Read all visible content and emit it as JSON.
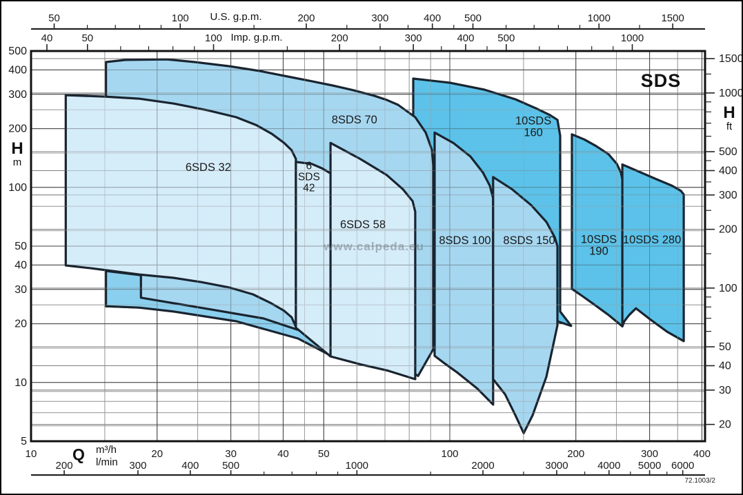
{
  "title": "SDS",
  "watermark": "www.calpeda.eu",
  "ref": "72.1003/2",
  "axes": {
    "top_us": {
      "label": "U.S. g.p.m.",
      "majors": [
        50,
        100,
        200,
        300,
        400,
        500,
        1000,
        1500
      ],
      "minors": [
        60,
        70,
        80,
        90,
        150,
        250,
        350,
        450,
        600,
        700,
        800,
        900,
        1250
      ]
    },
    "top_imp": {
      "label": "Imp. g.p.m.",
      "majors": [
        40,
        50,
        100,
        200,
        300,
        400,
        500,
        1000
      ],
      "minors": [
        60,
        70,
        80,
        90,
        150,
        250,
        350,
        450,
        600,
        700,
        800,
        900
      ]
    },
    "left_m": {
      "label": "H",
      "unit": "m",
      "majors": [
        500,
        400,
        300,
        200,
        100,
        50,
        40,
        30,
        20,
        10,
        5
      ]
    },
    "right_ft": {
      "label": "H",
      "unit": "ft",
      "majors": [
        1500,
        1000,
        500,
        400,
        300,
        200,
        100,
        50,
        40,
        30,
        20
      ],
      "minors": [
        60,
        70,
        80,
        90,
        150,
        250,
        350,
        450,
        600,
        700,
        800,
        900,
        1250
      ]
    },
    "bottom_m3h": {
      "label": "Q",
      "unit": "m³/h",
      "majors": [
        10,
        20,
        30,
        40,
        50,
        100,
        200,
        300,
        400
      ]
    },
    "bottom_lmin": {
      "unit": "l/min",
      "majors": [
        200,
        300,
        400,
        500,
        1000,
        2000,
        3000,
        4000,
        5000,
        6000
      ],
      "minors": [
        600,
        700,
        800,
        900,
        1500,
        2500,
        3500,
        4500,
        5500
      ]
    }
  },
  "grid": {
    "x_major_m3h": [
      10,
      20,
      30,
      40,
      50,
      100,
      200,
      300,
      400
    ],
    "x_minor_m3h": [
      15,
      25,
      35,
      45,
      60,
      70,
      80,
      90,
      150,
      250,
      350
    ],
    "y_major_m": [
      10,
      20,
      30,
      40,
      50,
      100,
      200,
      300,
      400,
      500
    ],
    "y_minor_m": [
      6,
      7,
      8,
      9,
      15,
      25,
      60,
      80,
      150,
      250
    ],
    "y_ft": [
      20,
      30,
      40,
      50,
      100,
      200,
      300,
      400,
      500,
      1000,
      1500
    ]
  },
  "colors": {
    "pale": "#d5ecf9",
    "medium": "#a6d7f0",
    "band": "#8bcfee",
    "dark": "#5cc2e9",
    "outline": "#19242f",
    "grid_major": "#3c3c3c",
    "grid_minor": "#9b9b9b",
    "grid_ft": "#7e7e7e",
    "frame": "#111111"
  },
  "chart_data": {
    "type": "area",
    "title": "SDS pump family coverage chart",
    "xlabel": "Q (m³/h, l/min, U.S. g.p.m., Imp. g.p.m.)",
    "ylabel": "H (m, ft)",
    "x_scale": "log",
    "y_scale": "log",
    "x_range_m3h": [
      10,
      400
    ],
    "y_range_m": [
      5,
      500
    ],
    "regions": [
      {
        "name": "10SDS 160",
        "family": "dark",
        "label_lines": [
          "10SDS",
          "160"
        ],
        "label_q": 158.3,
        "label_h": 206,
        "q_range": [
          82,
          195
        ],
        "h_range": [
          19,
          361
        ],
        "outline": [
          [
            81.8,
            361
          ],
          [
            100,
            344
          ],
          [
            120.9,
            317
          ],
          [
            143.4,
            283
          ],
          [
            160.7,
            254
          ],
          [
            173.3,
            235
          ],
          [
            180.7,
            222
          ],
          [
            183.5,
            184
          ],
          [
            183.5,
            23.1
          ],
          [
            194.9,
            19.5
          ],
          [
            157.7,
            22.7
          ],
          [
            120.9,
            25.0
          ],
          [
            100,
            26.3
          ],
          [
            81.8,
            27.6
          ]
        ]
      },
      {
        "name": "10SDS 190",
        "family": "dark",
        "label_lines": [
          "10SDS",
          "190"
        ],
        "label_q": 226.9,
        "label_h": 50.8,
        "q_range": [
          196,
          258
        ],
        "h_range": [
          19,
          187
        ],
        "outline": [
          [
            195.7,
            187
          ],
          [
            209.5,
            176
          ],
          [
            223.5,
            163
          ],
          [
            239.3,
            148
          ],
          [
            250.5,
            132
          ],
          [
            256.3,
            119
          ],
          [
            258.2,
            110
          ],
          [
            258.2,
            19.4
          ],
          [
            239.3,
            22.2
          ],
          [
            221.8,
            25.0
          ],
          [
            207.9,
            27.6
          ],
          [
            195.7,
            30.2
          ]
        ]
      },
      {
        "name": "10SDS 280",
        "family": "dark",
        "label_lines": [
          "10SDS 280"
        ],
        "label_q": 304,
        "label_h": 54.2,
        "q_range": [
          258,
          362
        ],
        "h_range": [
          16,
          131
        ],
        "outline": [
          [
            258.2,
            131
          ],
          [
            283.9,
            120
          ],
          [
            312.1,
            110
          ],
          [
            339.3,
            102
          ],
          [
            356.4,
            96
          ],
          [
            361.9,
            92
          ],
          [
            361.9,
            16.3
          ],
          [
            330.3,
            18.2
          ],
          [
            300.5,
            21.1
          ],
          [
            278.4,
            24.0
          ],
          [
            268.2,
            22.2
          ],
          [
            261.1,
            20.6
          ],
          [
            258.2,
            19.4
          ]
        ]
      },
      {
        "name": "8SDS 70",
        "family": "medium",
        "label_lines": [
          "8SDS 70"
        ],
        "label_q": 59.2,
        "label_h": 223,
        "q_range": [
          15,
          91
        ],
        "h_range": [
          11,
          453
        ],
        "outline": [
          [
            15.1,
            439
          ],
          [
            16.8,
            450
          ],
          [
            21.1,
            453
          ],
          [
            24.6,
            439
          ],
          [
            29.7,
            418
          ],
          [
            35.2,
            395
          ],
          [
            41.8,
            367
          ],
          [
            46.8,
            350
          ],
          [
            52.5,
            333
          ],
          [
            58.8,
            315
          ],
          [
            65.9,
            295
          ],
          [
            70.6,
            281
          ],
          [
            75.2,
            265
          ],
          [
            82.7,
            229
          ],
          [
            87.6,
            191
          ],
          [
            90.6,
            156
          ],
          [
            91.3,
            130
          ],
          [
            91.3,
            14.8
          ],
          [
            84,
            10.8
          ],
          [
            71.1,
            13.6
          ],
          [
            56.6,
            15.9
          ],
          [
            43.4,
            18.2
          ],
          [
            29.7,
            21.6
          ],
          [
            21.1,
            23.9
          ],
          [
            15.1,
            24.6
          ]
        ]
      },
      {
        "name": "lower-band",
        "family": "band",
        "label_lines": [],
        "label_q": 0,
        "label_h": 0,
        "q_range": [
          15,
          52
        ],
        "h_range": [
          14,
          37
        ],
        "outline": [
          [
            15.1,
            37.3
          ],
          [
            18.3,
            35.5
          ],
          [
            18.3,
            27.2
          ],
          [
            26.5,
            23.8
          ],
          [
            35.9,
            21.3
          ],
          [
            45.1,
            18.1
          ],
          [
            52.1,
            14.4
          ],
          [
            52.1,
            13.7
          ],
          [
            43.4,
            16.8
          ],
          [
            30.9,
            20.6
          ],
          [
            21.9,
            23.1
          ],
          [
            18.1,
            24.2
          ],
          [
            15.1,
            24.6
          ]
        ]
      },
      {
        "name": "6SDS 32",
        "family": "pale",
        "label_lines": [
          "6SDS 32"
        ],
        "label_q": 26.5,
        "label_h": 127.5,
        "q_range": [
          12,
          43
        ],
        "h_range": [
          19,
          297
        ],
        "outline": [
          [
            12.1,
            297
          ],
          [
            15,
            292
          ],
          [
            18.1,
            285
          ],
          [
            21.9,
            269
          ],
          [
            26.5,
            248
          ],
          [
            30.9,
            229
          ],
          [
            34.6,
            208
          ],
          [
            37.6,
            188
          ],
          [
            40.2,
            169
          ],
          [
            41.9,
            155
          ],
          [
            42.9,
            140
          ],
          [
            42.9,
            19.3
          ],
          [
            41.9,
            21.6
          ],
          [
            40.2,
            23.3
          ],
          [
            37.3,
            25.6
          ],
          [
            33.9,
            28.3
          ],
          [
            29.7,
            30.7
          ],
          [
            25.5,
            32.7
          ],
          [
            21.9,
            34.4
          ],
          [
            18.1,
            35.8
          ],
          [
            15.6,
            37.3
          ],
          [
            13.9,
            38.5
          ],
          [
            12.1,
            39.8
          ]
        ]
      },
      {
        "name": "6SDS 42",
        "family": "pale",
        "label_lines": [
          "6",
          "SDS",
          "42"
        ],
        "label_q": 46.1,
        "label_h": 114,
        "q_range": [
          43,
          52
        ],
        "h_range": [
          14,
          135
        ],
        "outline": [
          [
            42.9,
            135
          ],
          [
            46.8,
            132
          ],
          [
            49.6,
            125
          ],
          [
            51.9,
            118
          ],
          [
            51.9,
            13.6
          ],
          [
            42.9,
            19.1
          ]
        ]
      },
      {
        "name": "6SDS 58",
        "family": "pale",
        "label_lines": [
          "6SDS 58"
        ],
        "label_q": 62,
        "label_h": 64.8,
        "q_range": [
          52,
          83
        ],
        "h_range": [
          10,
          169
        ],
        "outline": [
          [
            51.9,
            169
          ],
          [
            61.1,
            140
          ],
          [
            70.6,
            116
          ],
          [
            77.2,
            98
          ],
          [
            81.5,
            85
          ],
          [
            82.7,
            75
          ],
          [
            82.7,
            10.4
          ],
          [
            71.1,
            11.5
          ],
          [
            61.1,
            12.4
          ],
          [
            51.9,
            13.6
          ]
        ]
      },
      {
        "name": "8SDS 100",
        "family": "medium",
        "label_lines": [
          "8SDS 100"
        ],
        "label_q": 108.7,
        "label_h": 53.8,
        "q_range": [
          92,
          127
        ],
        "h_range": [
          8,
          191
        ],
        "outline": [
          [
            92,
            191
          ],
          [
            101.9,
            169
          ],
          [
            112,
            144
          ],
          [
            120,
            119
          ],
          [
            124.6,
            102
          ],
          [
            126.9,
            88
          ],
          [
            126.9,
            7.7
          ],
          [
            116.4,
            9.3
          ],
          [
            103.9,
            11.3
          ],
          [
            96.3,
            12.7
          ],
          [
            92,
            13.7
          ]
        ]
      },
      {
        "name": "8SDS 150",
        "family": "medium",
        "label_lines": [
          "8SDS 150"
        ],
        "label_q": 154.7,
        "label_h": 53.8,
        "q_range": [
          127,
          181
        ],
        "h_range": [
          5.5,
          113
        ],
        "outline": [
          [
            126.9,
            113
          ],
          [
            140.7,
            98
          ],
          [
            156.5,
            81
          ],
          [
            170.1,
            66.5
          ],
          [
            178,
            55.6
          ],
          [
            180.7,
            50
          ],
          [
            180.7,
            19.6
          ],
          [
            170.1,
            10.7
          ],
          [
            157.7,
            6.8
          ],
          [
            150.1,
            5.5
          ],
          [
            143.4,
            6.8
          ],
          [
            135.5,
            8.7
          ],
          [
            126.9,
            10.4
          ]
        ]
      }
    ]
  }
}
